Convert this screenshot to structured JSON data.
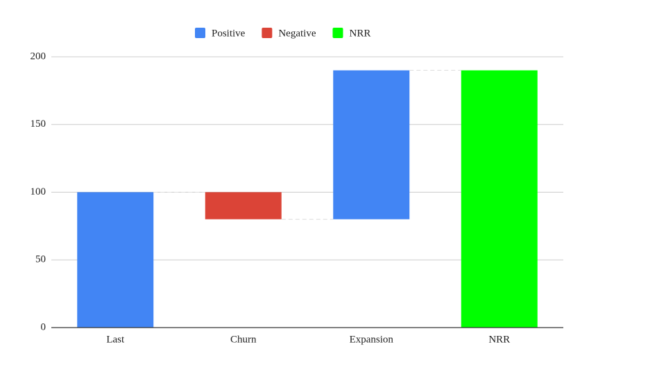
{
  "chart_data": {
    "type": "waterfall",
    "categories": [
      "Last",
      "Churn",
      "Expansion",
      "NRR"
    ],
    "series": [
      {
        "name": "Positive",
        "color": "#4285f4",
        "values": [
          100,
          null,
          110,
          null
        ]
      },
      {
        "name": "Negative",
        "color": "#db4437",
        "values": [
          null,
          -20,
          null,
          null
        ]
      },
      {
        "name": "NRR",
        "color": "#00ff00",
        "values": [
          null,
          null,
          null,
          190
        ],
        "total": true
      }
    ],
    "ylim": [
      0,
      200
    ],
    "yticks": [
      0,
      50,
      100,
      150,
      200
    ],
    "grid": true,
    "legend": "top"
  }
}
